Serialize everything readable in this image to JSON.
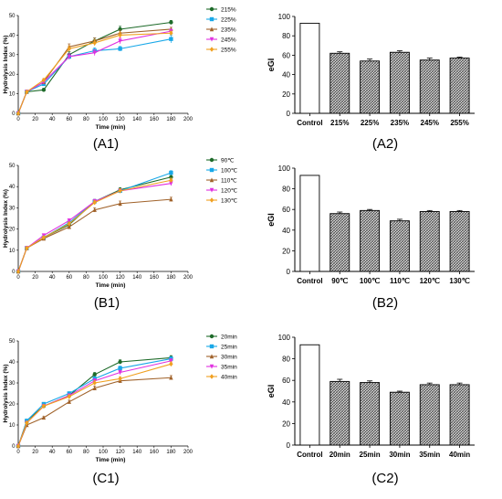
{
  "chart_data": [
    {
      "id": "A1",
      "type": "line",
      "panel_label": "(A1)",
      "xlabel": "Time (min)",
      "ylabel": "Hydrolysis Index (%)",
      "xlim": [
        0,
        200
      ],
      "ylim": [
        0,
        50
      ],
      "xticks": [
        "0",
        "20",
        "40",
        "60",
        "80",
        "100",
        "120",
        "140",
        "160",
        "180",
        "200"
      ],
      "yticks": [
        "0",
        "10",
        "20",
        "30",
        "40",
        "50"
      ],
      "x": [
        0,
        10,
        30,
        60,
        90,
        120,
        180
      ],
      "series": [
        {
          "name": "215%",
          "color": "#1e6b2a",
          "marker": "circle",
          "values": [
            0,
            11,
            12,
            30,
            37,
            43,
            46.5
          ],
          "err": [
            0,
            0.5,
            0.8,
            1.5,
            1.5,
            1.5,
            1
          ]
        },
        {
          "name": "225%",
          "color": "#19a8e8",
          "marker": "square",
          "values": [
            0,
            11,
            15,
            29,
            32,
            33,
            38
          ],
          "err": [
            0,
            0.5,
            0.8,
            1.5,
            1.5,
            1.2,
            2
          ]
        },
        {
          "name": "235%",
          "color": "#a0622a",
          "marker": "triangle",
          "values": [
            0,
            11,
            16,
            34,
            37,
            41,
            43
          ],
          "err": [
            0,
            0.5,
            0.8,
            1.5,
            1.5,
            1.5,
            1
          ]
        },
        {
          "name": "245%",
          "color": "#e030e0",
          "marker": "triangle-down",
          "values": [
            0,
            11,
            16,
            29,
            31,
            37,
            42
          ],
          "err": [
            0,
            0.5,
            0.8,
            1.5,
            1.5,
            1.5,
            1
          ]
        },
        {
          "name": "255%",
          "color": "#f0a020",
          "marker": "diamond",
          "values": [
            0,
            11,
            17,
            33,
            36,
            40,
            41
          ],
          "err": [
            0,
            0.5,
            0.8,
            1.5,
            1.5,
            1.5,
            1
          ]
        }
      ]
    },
    {
      "id": "A2",
      "type": "bar",
      "panel_label": "(A2)",
      "ylabel": "eGI",
      "ylim": [
        0,
        100
      ],
      "yticks": [
        "0",
        "20",
        "40",
        "60",
        "80",
        "100"
      ],
      "categories": [
        "Control",
        "215%",
        "225%",
        "235%",
        "245%",
        "255%"
      ],
      "values": [
        93,
        62,
        54,
        63,
        55,
        57
      ],
      "err": [
        0,
        1.5,
        2,
        1.5,
        2,
        1
      ]
    },
    {
      "id": "B1",
      "type": "line",
      "panel_label": "(B1)",
      "xlabel": "Time (min)",
      "ylabel": "Hydrolysis Index (%)",
      "xlim": [
        0,
        200
      ],
      "ylim": [
        0,
        50
      ],
      "xticks": [
        "0",
        "20",
        "40",
        "60",
        "80",
        "100",
        "120",
        "140",
        "160",
        "180",
        "200"
      ],
      "yticks": [
        "0",
        "10",
        "20",
        "30",
        "40",
        "50"
      ],
      "x": [
        0,
        10,
        30,
        60,
        90,
        120,
        180
      ],
      "series": [
        {
          "name": "90℃",
          "color": "#1e6b2a",
          "marker": "circle",
          "values": [
            0,
            11,
            16,
            22,
            33,
            38.5,
            44.5
          ],
          "err": [
            0,
            0.5,
            0.5,
            0.8,
            1,
            1,
            1.5
          ]
        },
        {
          "name": "100℃",
          "color": "#19a8e8",
          "marker": "square",
          "values": [
            0,
            11,
            16,
            23,
            33,
            38,
            46.5
          ],
          "err": [
            0,
            0.5,
            0.5,
            0.8,
            1,
            1,
            1
          ]
        },
        {
          "name": "110℃",
          "color": "#a0622a",
          "marker": "triangle",
          "values": [
            0,
            11,
            15.5,
            21,
            29,
            32,
            34
          ],
          "err": [
            0,
            0.5,
            0.5,
            0.8,
            1,
            1.2,
            1
          ]
        },
        {
          "name": "120℃",
          "color": "#e030e0",
          "marker": "triangle-down",
          "values": [
            0,
            11,
            17,
            24,
            33,
            38,
            41.5
          ],
          "err": [
            0,
            0.5,
            0.5,
            0.8,
            1,
            1,
            1
          ]
        },
        {
          "name": "130℃",
          "color": "#f0a020",
          "marker": "diamond",
          "values": [
            0,
            11,
            16,
            22.5,
            32.5,
            38,
            43
          ],
          "err": [
            0,
            0.5,
            0.5,
            0.8,
            1,
            1,
            1
          ]
        }
      ]
    },
    {
      "id": "B2",
      "type": "bar",
      "panel_label": "(B2)",
      "ylabel": "eGI",
      "ylim": [
        0,
        100
      ],
      "yticks": [
        "0",
        "20",
        "40",
        "60",
        "80",
        "100"
      ],
      "categories": [
        "Control",
        "90℃",
        "100℃",
        "110℃",
        "120℃",
        "130℃"
      ],
      "values": [
        93,
        56,
        59,
        49,
        58,
        58
      ],
      "err": [
        0,
        1.5,
        1,
        1.5,
        1,
        1
      ]
    },
    {
      "id": "C1",
      "type": "line",
      "panel_label": "(C1)",
      "xlabel": "Time (min)",
      "ylabel": "Hydrolysis Index (%)",
      "xlim": [
        0,
        200
      ],
      "ylim": [
        0,
        50
      ],
      "xticks": [
        "0",
        "20",
        "40",
        "60",
        "80",
        "100",
        "120",
        "140",
        "160",
        "180",
        "200"
      ],
      "yticks": [
        "0",
        "10",
        "20",
        "30",
        "40",
        "50"
      ],
      "x": [
        0,
        10,
        30,
        60,
        90,
        120,
        180
      ],
      "series": [
        {
          "name": "20min",
          "color": "#1e6b2a",
          "marker": "circle",
          "values": [
            0,
            12,
            19,
            24,
            34,
            40,
            42
          ],
          "err": [
            0,
            0.5,
            0.5,
            0.8,
            1,
            1,
            1
          ]
        },
        {
          "name": "25min",
          "color": "#19a8e8",
          "marker": "square",
          "values": [
            0,
            12,
            20,
            25,
            32,
            37,
            41.5
          ],
          "err": [
            0,
            0.5,
            0.5,
            0.8,
            1,
            1,
            1
          ]
        },
        {
          "name": "30min",
          "color": "#a0622a",
          "marker": "triangle",
          "values": [
            0,
            10,
            13.5,
            21,
            27.5,
            31,
            32.5
          ],
          "err": [
            0,
            0.5,
            0.5,
            0.8,
            1,
            1,
            1
          ]
        },
        {
          "name": "35min",
          "color": "#e030e0",
          "marker": "triangle-down",
          "values": [
            0,
            11,
            19,
            24,
            31,
            35,
            40.5
          ],
          "err": [
            0,
            0.5,
            0.5,
            0.8,
            1,
            1,
            1
          ]
        },
        {
          "name": "40min",
          "color": "#f0a020",
          "marker": "diamond",
          "values": [
            0,
            11,
            19,
            23.5,
            30,
            32,
            39
          ],
          "err": [
            0,
            0.5,
            0.5,
            0.8,
            1,
            1,
            1
          ]
        }
      ]
    },
    {
      "id": "C2",
      "type": "bar",
      "panel_label": "(C2)",
      "ylabel": "eGI",
      "ylim": [
        0,
        100
      ],
      "yticks": [
        "0",
        "20",
        "40",
        "60",
        "80",
        "100"
      ],
      "categories": [
        "Control",
        "20min",
        "25min",
        "30min",
        "35min",
        "40min"
      ],
      "values": [
        93,
        59,
        58,
        49,
        56,
        56
      ],
      "err": [
        0,
        2,
        1.5,
        1,
        1.5,
        1.5
      ]
    }
  ]
}
